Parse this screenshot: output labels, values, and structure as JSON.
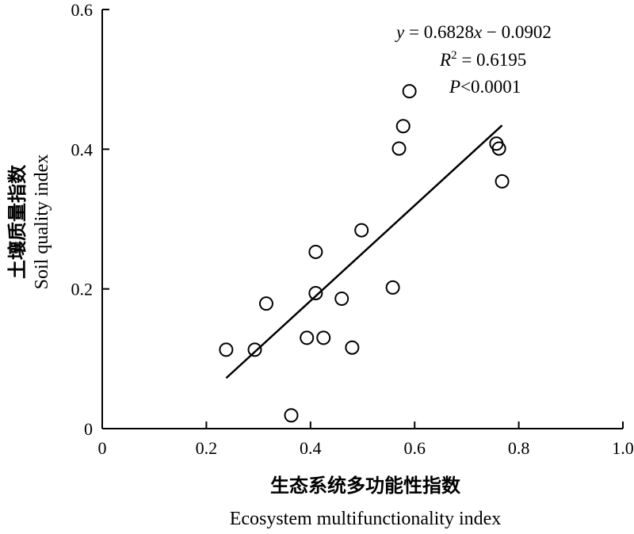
{
  "chart_data": {
    "type": "scatter",
    "xlabel_cn": "生态系统多功能性指数",
    "xlabel": "Ecosystem multifunctionality index",
    "ylabel_cn": "土壤质量指数",
    "ylabel": "Soil quality index",
    "xlim": [
      0,
      1.0
    ],
    "ylim": [
      0,
      0.6
    ],
    "x_ticks": [
      "0",
      "0.2",
      "0.4",
      "0.6",
      "0.8",
      "1.0"
    ],
    "y_ticks": [
      "0",
      "0.2",
      "0.4",
      "0.6"
    ],
    "points": [
      {
        "x": 0.238,
        "y": 0.113
      },
      {
        "x": 0.293,
        "y": 0.113
      },
      {
        "x": 0.315,
        "y": 0.179
      },
      {
        "x": 0.363,
        "y": 0.019
      },
      {
        "x": 0.393,
        "y": 0.13
      },
      {
        "x": 0.41,
        "y": 0.253
      },
      {
        "x": 0.41,
        "y": 0.194
      },
      {
        "x": 0.425,
        "y": 0.13
      },
      {
        "x": 0.46,
        "y": 0.186
      },
      {
        "x": 0.48,
        "y": 0.116
      },
      {
        "x": 0.498,
        "y": 0.284
      },
      {
        "x": 0.558,
        "y": 0.202
      },
      {
        "x": 0.57,
        "y": 0.401
      },
      {
        "x": 0.578,
        "y": 0.433
      },
      {
        "x": 0.59,
        "y": 0.483
      },
      {
        "x": 0.757,
        "y": 0.408
      },
      {
        "x": 0.762,
        "y": 0.401
      },
      {
        "x": 0.768,
        "y": 0.354
      }
    ],
    "fit": {
      "slope": 0.6828,
      "intercept": -0.0902,
      "x_range": [
        0.238,
        0.768
      ]
    },
    "annotation": {
      "eq_y": "y",
      "eq_rest": " = 0.6828",
      "eq_x": "x",
      "eq_tail": " − 0.0902",
      "r2_r": "R",
      "r2_sup": "2",
      "r2_val": " = 0.6195",
      "p_p": "P",
      "p_val": "<0.0001"
    },
    "grid": false,
    "marker": "open-circle",
    "colors": {
      "axis": "#000000",
      "marker_stroke": "#000000",
      "line": "#000000"
    }
  }
}
